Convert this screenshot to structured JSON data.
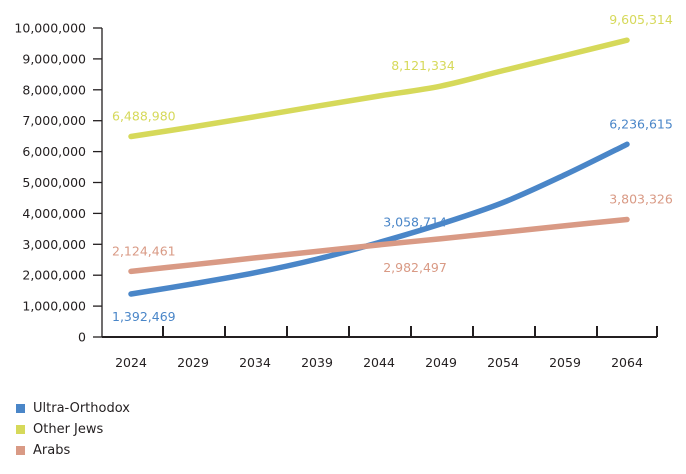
{
  "chart_data": {
    "type": "line",
    "title": "",
    "xlabel": "",
    "ylabel": "",
    "categories": [
      "2024",
      "2029",
      "2034",
      "2039",
      "2044",
      "2049",
      "2054",
      "2059",
      "2064"
    ],
    "ylim": [
      0,
      10000000
    ],
    "yticks": [
      0,
      1000000,
      2000000,
      3000000,
      4000000,
      5000000,
      6000000,
      7000000,
      8000000,
      9000000,
      10000000
    ],
    "ytick_labels": [
      "0",
      "1,000,000",
      "2,000,000",
      "3,000,000",
      "4,000,000",
      "5,000,000",
      "6,000,000",
      "7,000,000",
      "8,000,000",
      "9,000,000",
      "10,000,000"
    ],
    "grid": false,
    "legend_position": "bottom-left",
    "series": [
      {
        "name": "Ultra-Orthodox",
        "color": "#4a86c8",
        "values": [
          1392469,
          1720000,
          2080000,
          2520000,
          3058714,
          3660000,
          4350000,
          5250000,
          6236615
        ],
        "labels": [
          {
            "index": 0,
            "text": "1,392,469",
            "position": "below"
          },
          {
            "index": 4,
            "text": "3,058,714",
            "position": "above"
          },
          {
            "index": 8,
            "text": "6,236,615",
            "position": "above"
          }
        ]
      },
      {
        "name": "Other Jews",
        "color": "#d6d95a",
        "values": [
          6488980,
          6800000,
          7130000,
          7470000,
          7800000,
          8121334,
          8620000,
          9110000,
          9605314
        ],
        "labels": [
          {
            "index": 0,
            "text": "6,488,980",
            "position": "above"
          },
          {
            "index": 5,
            "text": "8,121,334",
            "position": "above"
          },
          {
            "index": 8,
            "text": "9,605,314",
            "position": "above"
          }
        ]
      },
      {
        "name": "Arabs",
        "color": "#d99a85",
        "values": [
          2124461,
          2340000,
          2560000,
          2770000,
          2982497,
          3180000,
          3390000,
          3600000,
          3803326
        ],
        "labels": [
          {
            "index": 0,
            "text": "2,124,461",
            "position": "above"
          },
          {
            "index": 4,
            "text": "2,982,497",
            "position": "below"
          },
          {
            "index": 8,
            "text": "3,803,326",
            "position": "above"
          }
        ]
      }
    ]
  },
  "legend": {
    "items": [
      {
        "label": "Ultra-Orthodox",
        "color": "#4a86c8"
      },
      {
        "label": "Other Jews",
        "color": "#d6d95a"
      },
      {
        "label": "Arabs",
        "color": "#d99a85"
      }
    ]
  }
}
